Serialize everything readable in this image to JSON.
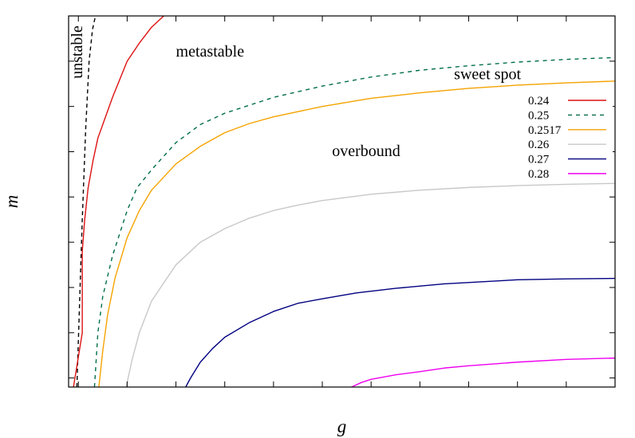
{
  "chart_data": {
    "type": "line",
    "title": "",
    "xlabel": "g",
    "ylabel": "m",
    "xlim": [
      8,
      120
    ],
    "ylim": [
      0.18,
      1.0
    ],
    "x_ticks": [
      "10",
      "20",
      "30",
      "40",
      "50",
      "60",
      "70",
      "80",
      "90",
      "100",
      "110",
      "120"
    ],
    "y_ticks": [
      "0.2",
      "0.3",
      "0.4",
      "0.5",
      "0.6",
      "0.7",
      "0.8",
      "0.9",
      "1"
    ],
    "legend_position": "right",
    "annotations": [
      {
        "text": "unstable",
        "x": 10.8,
        "y": 0.92,
        "rotation": -90
      },
      {
        "text": "metastable",
        "x": 30,
        "y": 0.91
      },
      {
        "text": "sweet spot",
        "x": 87,
        "y": 0.86
      },
      {
        "text": "overbound",
        "x": 62,
        "y": 0.69
      }
    ],
    "series": [
      {
        "name": "",
        "color": "#000000",
        "dash": "5,4",
        "x": [
          9.7,
          10.2,
          10.8,
          11.5,
          12.2,
          12.9,
          13.5
        ],
        "y": [
          0.18,
          0.35,
          0.55,
          0.75,
          0.9,
          0.97,
          1.0
        ]
      },
      {
        "name": "0.24",
        "color": "#dd1111",
        "dash": "",
        "x": [
          9.0,
          10.8,
          10.8,
          11.3,
          12,
          13,
          14,
          15,
          17,
          20,
          22.5,
          25,
          27.5
        ],
        "y": [
          0.18,
          0.3,
          0.48,
          0.55,
          0.62,
          0.68,
          0.73,
          0.76,
          0.82,
          0.9,
          0.94,
          0.975,
          1.0
        ]
      },
      {
        "name": "0.25",
        "color": "#006e4a",
        "dash": "5,5",
        "x": [
          13.3,
          14,
          15,
          17,
          20,
          22,
          25,
          30,
          35,
          40,
          50,
          60,
          70,
          80,
          90,
          100,
          110,
          120
        ],
        "y": [
          0.18,
          0.3,
          0.38,
          0.47,
          0.57,
          0.62,
          0.66,
          0.72,
          0.76,
          0.785,
          0.82,
          0.845,
          0.865,
          0.88,
          0.89,
          0.898,
          0.904,
          0.908
        ]
      },
      {
        "name": "0.2517",
        "color": "#f5a300",
        "dash": "",
        "x": [
          14.2,
          15,
          16,
          17.5,
          20,
          22.5,
          25,
          30,
          35,
          40,
          45,
          50,
          60,
          70,
          80,
          90,
          100,
          110,
          120
        ],
        "y": [
          0.18,
          0.26,
          0.34,
          0.42,
          0.51,
          0.57,
          0.615,
          0.673,
          0.712,
          0.742,
          0.762,
          0.777,
          0.8,
          0.818,
          0.83,
          0.84,
          0.847,
          0.852,
          0.856
        ]
      },
      {
        "name": "0.26",
        "color": "#c8c8c8",
        "dash": "",
        "x": [
          19.8,
          21,
          22.5,
          25,
          27.5,
          30,
          35,
          40,
          45,
          50,
          55,
          60,
          70,
          80,
          90,
          100,
          110,
          120
        ],
        "y": [
          0.18,
          0.24,
          0.3,
          0.37,
          0.41,
          0.45,
          0.5,
          0.53,
          0.553,
          0.57,
          0.582,
          0.592,
          0.606,
          0.615,
          0.621,
          0.625,
          0.628,
          0.63
        ]
      },
      {
        "name": "0.27",
        "color": "#000080",
        "dash": "",
        "x": [
          32,
          33,
          35,
          37.5,
          40,
          45,
          50,
          55,
          60,
          67,
          75,
          85,
          100,
          110,
          120
        ],
        "y": [
          0.18,
          0.2,
          0.235,
          0.265,
          0.29,
          0.322,
          0.347,
          0.365,
          0.375,
          0.388,
          0.398,
          0.408,
          0.417,
          0.419,
          0.42
        ]
      },
      {
        "name": "0.28",
        "color": "#ee00ee",
        "dash": "",
        "x": [
          66,
          68,
          70,
          75,
          80,
          85,
          90,
          95,
          100,
          110,
          120
        ],
        "y": [
          0.18,
          0.19,
          0.197,
          0.207,
          0.214,
          0.222,
          0.227,
          0.231,
          0.235,
          0.241,
          0.244
        ]
      }
    ]
  }
}
